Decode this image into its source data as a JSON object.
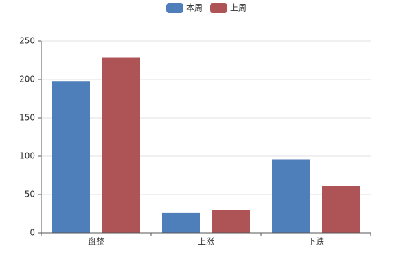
{
  "chart_data": {
    "type": "bar",
    "categories": [
      "盘整",
      "上涨",
      "下跌"
    ],
    "series": [
      {
        "name": "本周",
        "color": "#4e7fbb",
        "values": [
          198,
          26,
          96
        ]
      },
      {
        "name": "上周",
        "color": "#ae5457",
        "values": [
          229,
          30,
          61
        ]
      }
    ],
    "ylim": [
      0,
      250
    ],
    "yticks": [
      0,
      50,
      100,
      150,
      200,
      250
    ],
    "grid": true,
    "legend": "top"
  }
}
